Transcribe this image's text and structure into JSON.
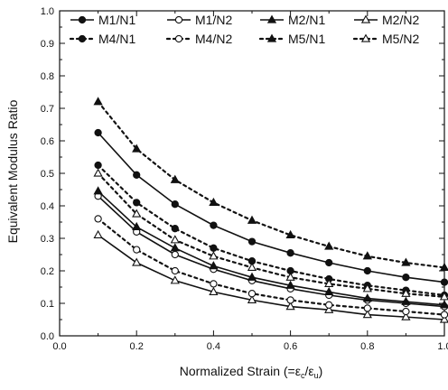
{
  "chart_data": {
    "type": "line",
    "xlabel": "Normalized Strain (=ε",
    "xlabel_sub_c": "c",
    "xlabel_sep": "/ε",
    "xlabel_sub_u": "u",
    "xlabel_close": ")",
    "ylabel": "Equivalent Modulus Ratio",
    "xlim": [
      0.0,
      1.0
    ],
    "ylim": [
      0.0,
      1.0
    ],
    "x_ticks": [
      "0.0",
      "0.2",
      "0.4",
      "0.6",
      "0.8",
      "1.0"
    ],
    "y_ticks": [
      "0.0",
      "0.1",
      "0.2",
      "0.3",
      "0.4",
      "0.5",
      "0.6",
      "0.7",
      "0.8",
      "0.9",
      "1.0"
    ],
    "grid": false,
    "legend_position": "top",
    "x": [
      0.1,
      0.2,
      0.3,
      0.4,
      0.5,
      0.6,
      0.7,
      0.8,
      0.9,
      1.0
    ],
    "series": [
      {
        "name": "M1/N1",
        "line": "solid",
        "marker": "circle-filled",
        "values": [
          0.625,
          0.495,
          0.405,
          0.34,
          0.29,
          0.255,
          0.225,
          0.2,
          0.18,
          0.165
        ]
      },
      {
        "name": "M1/N2",
        "line": "solid",
        "marker": "circle-open",
        "values": [
          0.43,
          0.32,
          0.25,
          0.205,
          0.17,
          0.145,
          0.125,
          0.11,
          0.1,
          0.09
        ]
      },
      {
        "name": "M2/N1",
        "line": "solid",
        "marker": "triangle-filled",
        "values": [
          0.445,
          0.335,
          0.27,
          0.215,
          0.18,
          0.155,
          0.135,
          0.115,
          0.105,
          0.095
        ]
      },
      {
        "name": "M2/N2",
        "line": "solid",
        "marker": "triangle-open",
        "values": [
          0.31,
          0.225,
          0.17,
          0.135,
          0.11,
          0.09,
          0.08,
          0.065,
          0.058,
          0.05
        ]
      },
      {
        "name": "M4/N1",
        "line": "dotted",
        "marker": "circle-filled",
        "values": [
          0.525,
          0.41,
          0.33,
          0.27,
          0.23,
          0.2,
          0.175,
          0.155,
          0.14,
          0.125
        ]
      },
      {
        "name": "M4/N2",
        "line": "dotted",
        "marker": "circle-open",
        "values": [
          0.36,
          0.265,
          0.2,
          0.16,
          0.13,
          0.11,
          0.095,
          0.085,
          0.075,
          0.065
        ]
      },
      {
        "name": "M5/N1",
        "line": "dotted",
        "marker": "triangle-filled",
        "values": [
          0.72,
          0.575,
          0.48,
          0.41,
          0.355,
          0.31,
          0.275,
          0.245,
          0.225,
          0.21
        ]
      },
      {
        "name": "M5/N2",
        "line": "dotted",
        "marker": "triangle-open",
        "values": [
          0.5,
          0.375,
          0.295,
          0.245,
          0.21,
          0.18,
          0.16,
          0.145,
          0.13,
          0.12
        ]
      }
    ]
  }
}
